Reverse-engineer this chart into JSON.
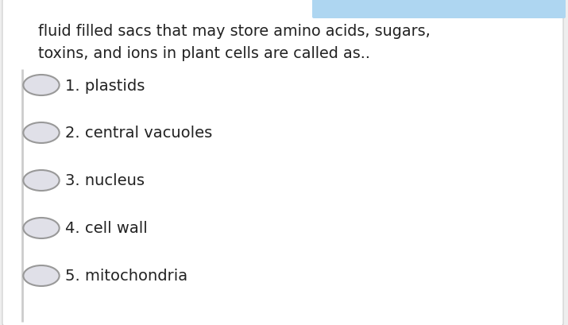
{
  "question_line1": "fluid filled sacs that may store amino acids, sugars,",
  "question_line2": "toxins, and ions in plant cells are called as..",
  "options": [
    "1. plastids",
    "2. central vacuoles",
    "3. nucleus",
    "4. cell wall",
    "5. mitochondria"
  ],
  "background_color": "#eeeeee",
  "panel_color": "#ffffff",
  "text_color": "#222222",
  "circle_edge_color": "#999999",
  "circle_fill_color": "#e0e0e8",
  "tab_color": "#aed6f1",
  "question_fontsize": 13.8,
  "option_fontsize": 14.0,
  "left_border_color": "#cccccc"
}
